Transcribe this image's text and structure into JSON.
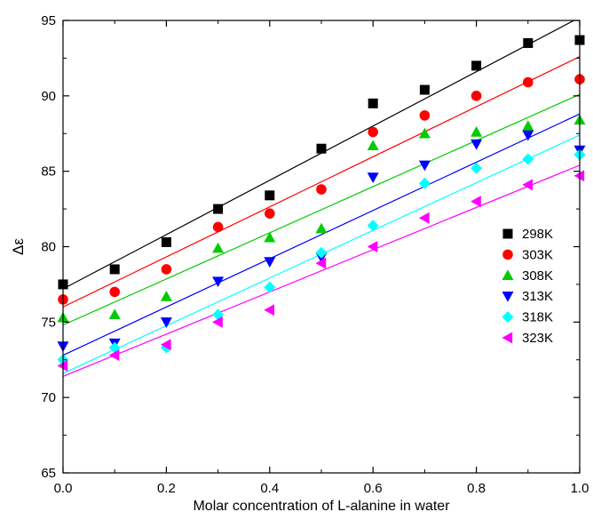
{
  "chart_data": {
    "type": "scatter",
    "title": "",
    "xlabel": "Molar concentration of L-alanine in water",
    "ylabel": "Δε",
    "xlim": [
      0.0,
      1.0
    ],
    "ylim": [
      65,
      95
    ],
    "xticks": [
      "0.0",
      "0.2",
      "0.4",
      "0.6",
      "0.8",
      "1.0"
    ],
    "xtick_values": [
      0.0,
      0.2,
      0.4,
      0.6,
      0.8,
      1.0
    ],
    "yticks": [
      "65",
      "70",
      "75",
      "80",
      "85",
      "90",
      "95"
    ],
    "ytick_values": [
      65,
      70,
      75,
      80,
      85,
      90,
      95
    ],
    "grid": false,
    "legend_position": "right",
    "x": [
      0.0,
      0.1,
      0.2,
      0.3,
      0.4,
      0.5,
      0.6,
      0.7,
      0.8,
      0.9,
      1.0
    ],
    "series": [
      {
        "name": "298K",
        "marker": "square",
        "color": "#000000",
        "values": [
          77.5,
          78.5,
          80.3,
          82.5,
          83.4,
          86.5,
          89.5,
          90.4,
          92.0,
          93.5,
          93.7
        ],
        "fit": [
          77.2,
          95.2
        ]
      },
      {
        "name": "303K",
        "marker": "circle",
        "color": "#ff0000",
        "values": [
          76.5,
          77.0,
          78.5,
          81.3,
          82.2,
          83.8,
          87.6,
          88.7,
          90.0,
          90.9,
          91.1
        ],
        "fit": [
          76.0,
          92.6
        ]
      },
      {
        "name": "308K",
        "marker": "triangle-up",
        "color": "#00cc00",
        "values": [
          75.3,
          75.5,
          76.7,
          79.9,
          80.6,
          81.2,
          86.7,
          87.5,
          87.6,
          88.0,
          88.4
        ],
        "fit": [
          74.8,
          90.1
        ]
      },
      {
        "name": "313K",
        "marker": "triangle-down",
        "color": "#0000ff",
        "values": [
          73.4,
          73.6,
          75.0,
          77.7,
          79.0,
          79.3,
          84.6,
          85.4,
          86.8,
          87.4,
          86.4
        ],
        "fit": [
          72.8,
          88.8
        ]
      },
      {
        "name": "318K",
        "marker": "diamond",
        "color": "#00ffff",
        "values": [
          72.5,
          73.3,
          73.3,
          75.5,
          77.3,
          79.6,
          81.4,
          84.2,
          85.2,
          85.8,
          86.1
        ],
        "fit": [
          71.6,
          87.4
        ]
      },
      {
        "name": "323K",
        "marker": "triangle-left",
        "color": "#ff00ff",
        "values": [
          72.1,
          72.8,
          73.5,
          75.0,
          75.8,
          78.9,
          80.0,
          81.9,
          83.0,
          84.1,
          84.7
        ],
        "fit": [
          71.4,
          85.4
        ]
      }
    ]
  }
}
